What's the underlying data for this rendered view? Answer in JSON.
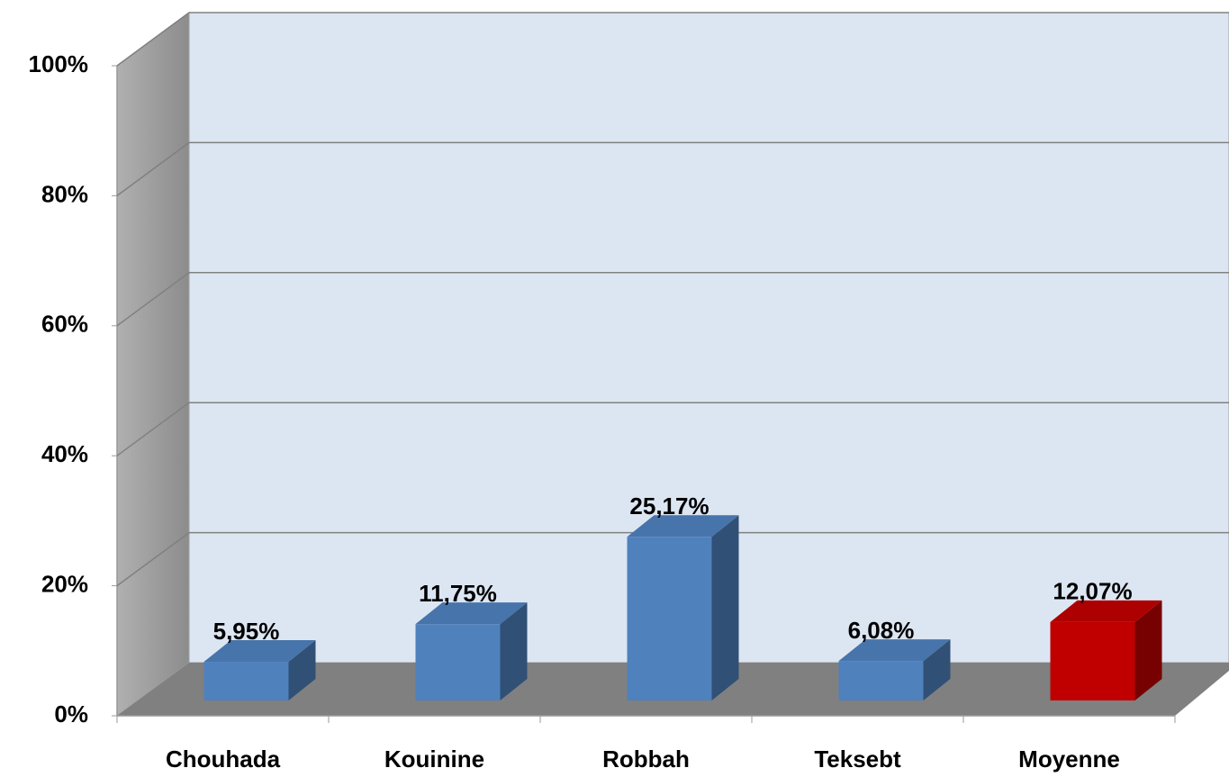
{
  "chart_data": {
    "type": "bar3d",
    "categories": [
      "Chouhada",
      "Kouinine",
      "Robbah",
      "Teksebt",
      "Moyenne"
    ],
    "values": [
      5.95,
      11.75,
      25.17,
      6.08,
      12.07
    ],
    "value_labels": [
      "5,95%",
      "11,75%",
      "25,17%",
      "6,08%",
      "12,07%"
    ],
    "colors": [
      "#4f81bd",
      "#4f81bd",
      "#4f81bd",
      "#4f81bd",
      "#c00000"
    ],
    "ylim": [
      0,
      100
    ],
    "yticks": [
      {
        "value": 0,
        "label": "0%"
      },
      {
        "value": 20,
        "label": "20%"
      },
      {
        "value": 40,
        "label": "40%"
      },
      {
        "value": 60,
        "label": "60%"
      },
      {
        "value": 80,
        "label": "80%"
      },
      {
        "value": 100,
        "label": "100%"
      }
    ],
    "grid": true
  }
}
